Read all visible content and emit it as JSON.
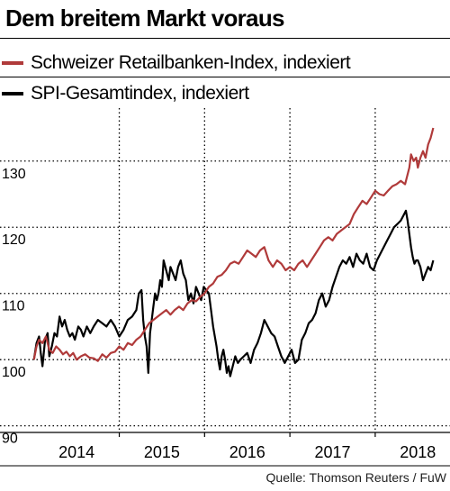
{
  "header": {
    "title": "Dem breitem Markt voraus"
  },
  "footer": {
    "source": "Quelle: Thomson Reuters / FuW"
  },
  "chart_data": {
    "type": "line",
    "title": "Dem breitem Markt voraus",
    "xlabel": "",
    "ylabel": "",
    "xlim": [
      2013.45,
      2018.25
    ],
    "ylim": [
      89,
      138
    ],
    "y_ticks": [
      90,
      100,
      110,
      120,
      130
    ],
    "x_tick_labels": [
      "2014",
      "2015",
      "2016",
      "2017",
      "2018"
    ],
    "x_tick_positions": [
      2014.0,
      2015.0,
      2016.0,
      2017.0,
      2018.0
    ],
    "grid": "dotted",
    "legend_position": "top",
    "colors": {
      "retail": "#b03a3a",
      "spi": "#000000"
    },
    "series": [
      {
        "name": "Schweizer Retailbanken-Index, indexiert",
        "color": "#b03a3a",
        "points": [
          [
            2013.5,
            100
          ],
          [
            2013.53,
            102
          ],
          [
            2013.56,
            103
          ],
          [
            2013.6,
            102.5
          ],
          [
            2013.64,
            103.5
          ],
          [
            2013.68,
            101.5
          ],
          [
            2013.72,
            101
          ],
          [
            2013.76,
            102
          ],
          [
            2013.8,
            101.5
          ],
          [
            2013.84,
            100.8
          ],
          [
            2013.88,
            101.2
          ],
          [
            2013.92,
            100.5
          ],
          [
            2013.96,
            101
          ],
          [
            2014.0,
            100
          ],
          [
            2014.05,
            100.5
          ],
          [
            2014.1,
            100.8
          ],
          [
            2014.15,
            100.3
          ],
          [
            2014.2,
            100.2
          ],
          [
            2014.25,
            99.8
          ],
          [
            2014.3,
            100.8
          ],
          [
            2014.35,
            100.3
          ],
          [
            2014.4,
            101
          ],
          [
            2014.45,
            101.2
          ],
          [
            2014.5,
            102
          ],
          [
            2014.55,
            101.5
          ],
          [
            2014.6,
            102.5
          ],
          [
            2014.65,
            102.2
          ],
          [
            2014.7,
            103
          ],
          [
            2014.75,
            103.5
          ],
          [
            2014.8,
            104.5
          ],
          [
            2014.85,
            105.5
          ],
          [
            2014.9,
            106
          ],
          [
            2014.95,
            106.5
          ],
          [
            2015.0,
            107
          ],
          [
            2015.05,
            107.5
          ],
          [
            2015.1,
            106.8
          ],
          [
            2015.15,
            107.5
          ],
          [
            2015.2,
            108
          ],
          [
            2015.25,
            107.5
          ],
          [
            2015.3,
            108.5
          ],
          [
            2015.35,
            109
          ],
          [
            2015.4,
            108.8
          ],
          [
            2015.45,
            109.5
          ],
          [
            2015.5,
            110
          ],
          [
            2015.55,
            111
          ],
          [
            2015.6,
            111.5
          ],
          [
            2015.65,
            112.5
          ],
          [
            2015.7,
            112.8
          ],
          [
            2015.75,
            113.5
          ],
          [
            2015.8,
            114.5
          ],
          [
            2015.85,
            114.8
          ],
          [
            2015.9,
            114.5
          ],
          [
            2015.95,
            115.5
          ],
          [
            2016.0,
            116.5
          ],
          [
            2016.05,
            116
          ],
          [
            2016.1,
            115.5
          ],
          [
            2016.15,
            116.5
          ],
          [
            2016.2,
            117
          ],
          [
            2016.25,
            115
          ],
          [
            2016.3,
            114
          ],
          [
            2016.35,
            115
          ],
          [
            2016.4,
            114.5
          ],
          [
            2016.45,
            113.5
          ],
          [
            2016.5,
            114
          ],
          [
            2016.55,
            113.5
          ],
          [
            2016.6,
            114.5
          ],
          [
            2016.65,
            115
          ],
          [
            2016.7,
            114
          ],
          [
            2016.75,
            115
          ],
          [
            2016.8,
            116
          ],
          [
            2016.85,
            117
          ],
          [
            2016.9,
            118
          ],
          [
            2016.95,
            118.5
          ],
          [
            2017.0,
            118
          ],
          [
            2017.05,
            119
          ],
          [
            2017.1,
            119.5
          ],
          [
            2017.15,
            120
          ],
          [
            2017.2,
            120.5
          ],
          [
            2017.25,
            122
          ],
          [
            2017.3,
            123
          ],
          [
            2017.35,
            124
          ],
          [
            2017.4,
            123.5
          ],
          [
            2017.45,
            124.5
          ],
          [
            2017.5,
            125.5
          ],
          [
            2017.55,
            125
          ],
          [
            2017.6,
            124.8
          ],
          [
            2017.65,
            125.5
          ],
          [
            2017.7,
            126.2
          ],
          [
            2017.75,
            126.5
          ],
          [
            2017.8,
            127
          ],
          [
            2017.85,
            126.5
          ],
          [
            2017.9,
            129
          ],
          [
            2017.92,
            131
          ],
          [
            2017.95,
            130
          ],
          [
            2017.98,
            130.5
          ],
          [
            2018.0,
            129
          ],
          [
            2018.03,
            130.5
          ],
          [
            2018.06,
            131.5
          ],
          [
            2018.09,
            130.5
          ],
          [
            2018.12,
            132.5
          ],
          [
            2018.15,
            133.5
          ],
          [
            2018.18,
            135
          ]
        ]
      },
      {
        "name": "SPI-Gesamtindex, indexiert",
        "color": "#000000",
        "points": [
          [
            2013.5,
            100
          ],
          [
            2013.53,
            102.5
          ],
          [
            2013.56,
            103.5
          ],
          [
            2013.58,
            101
          ],
          [
            2013.6,
            99
          ],
          [
            2013.63,
            103
          ],
          [
            2013.66,
            104
          ],
          [
            2013.68,
            100.5
          ],
          [
            2013.71,
            102
          ],
          [
            2013.74,
            104
          ],
          [
            2013.77,
            103.5
          ],
          [
            2013.8,
            106.5
          ],
          [
            2013.83,
            105
          ],
          [
            2013.86,
            106
          ],
          [
            2013.89,
            104.5
          ],
          [
            2013.92,
            103.5
          ],
          [
            2013.95,
            104
          ],
          [
            2013.98,
            103
          ],
          [
            2014.02,
            105
          ],
          [
            2014.05,
            104.5
          ],
          [
            2014.08,
            103.5
          ],
          [
            2014.12,
            105
          ],
          [
            2014.16,
            104
          ],
          [
            2014.2,
            105
          ],
          [
            2014.25,
            106
          ],
          [
            2014.3,
            105.5
          ],
          [
            2014.35,
            105
          ],
          [
            2014.4,
            106
          ],
          [
            2014.45,
            105
          ],
          [
            2014.5,
            103.5
          ],
          [
            2014.55,
            104.5
          ],
          [
            2014.6,
            106
          ],
          [
            2014.65,
            106.5
          ],
          [
            2014.7,
            107.5
          ],
          [
            2014.73,
            110
          ],
          [
            2014.76,
            110.5
          ],
          [
            2014.78,
            106
          ],
          [
            2014.8,
            103.5
          ],
          [
            2014.82,
            102
          ],
          [
            2014.84,
            98
          ],
          [
            2014.86,
            104
          ],
          [
            2014.88,
            106
          ],
          [
            2014.9,
            108
          ],
          [
            2014.92,
            110
          ],
          [
            2014.94,
            109
          ],
          [
            2014.96,
            110
          ],
          [
            2014.98,
            112
          ],
          [
            2015.0,
            111
          ],
          [
            2015.02,
            115
          ],
          [
            2015.04,
            114
          ],
          [
            2015.06,
            113
          ],
          [
            2015.08,
            112
          ],
          [
            2015.1,
            114
          ],
          [
            2015.13,
            113
          ],
          [
            2015.16,
            112
          ],
          [
            2015.19,
            114
          ],
          [
            2015.22,
            115
          ],
          [
            2015.25,
            113
          ],
          [
            2015.28,
            112
          ],
          [
            2015.31,
            109
          ],
          [
            2015.34,
            110
          ],
          [
            2015.37,
            108.5
          ],
          [
            2015.4,
            111
          ],
          [
            2015.43,
            110
          ],
          [
            2015.46,
            109
          ],
          [
            2015.49,
            111
          ],
          [
            2015.52,
            110.5
          ],
          [
            2015.55,
            110
          ],
          [
            2015.57,
            108
          ],
          [
            2015.6,
            105
          ],
          [
            2015.62,
            103.5
          ],
          [
            2015.64,
            102
          ],
          [
            2015.66,
            100
          ],
          [
            2015.68,
            98.5
          ],
          [
            2015.7,
            100.5
          ],
          [
            2015.72,
            101.5
          ],
          [
            2015.74,
            100
          ],
          [
            2015.76,
            98
          ],
          [
            2015.78,
            99
          ],
          [
            2015.8,
            97.5
          ],
          [
            2015.83,
            99
          ],
          [
            2015.86,
            100.5
          ],
          [
            2015.89,
            99.5
          ],
          [
            2015.92,
            100
          ],
          [
            2015.96,
            100.5
          ],
          [
            2016.0,
            101
          ],
          [
            2016.04,
            99.5
          ],
          [
            2016.08,
            101.5
          ],
          [
            2016.12,
            102.5
          ],
          [
            2016.16,
            104
          ],
          [
            2016.2,
            106
          ],
          [
            2016.24,
            105
          ],
          [
            2016.28,
            104
          ],
          [
            2016.32,
            103.5
          ],
          [
            2016.36,
            102
          ],
          [
            2016.4,
            100.5
          ],
          [
            2016.44,
            99.5
          ],
          [
            2016.48,
            100.5
          ],
          [
            2016.52,
            101.5
          ],
          [
            2016.56,
            99.5
          ],
          [
            2016.6,
            100
          ],
          [
            2016.64,
            103
          ],
          [
            2016.68,
            104
          ],
          [
            2016.72,
            105.5
          ],
          [
            2016.76,
            106
          ],
          [
            2016.8,
            107
          ],
          [
            2016.84,
            109
          ],
          [
            2016.88,
            110
          ],
          [
            2016.92,
            108
          ],
          [
            2016.96,
            109
          ],
          [
            2017.0,
            111
          ],
          [
            2017.04,
            112.5
          ],
          [
            2017.08,
            114
          ],
          [
            2017.12,
            115
          ],
          [
            2017.16,
            114.5
          ],
          [
            2017.2,
            115.5
          ],
          [
            2017.24,
            114
          ],
          [
            2017.28,
            116
          ],
          [
            2017.32,
            115
          ],
          [
            2017.36,
            114.5
          ],
          [
            2017.4,
            116
          ],
          [
            2017.44,
            114
          ],
          [
            2017.48,
            113.5
          ],
          [
            2017.52,
            115
          ],
          [
            2017.56,
            116
          ],
          [
            2017.6,
            117
          ],
          [
            2017.64,
            118
          ],
          [
            2017.68,
            119
          ],
          [
            2017.72,
            120
          ],
          [
            2017.76,
            120.5
          ],
          [
            2017.8,
            121
          ],
          [
            2017.84,
            122
          ],
          [
            2017.86,
            122.5
          ],
          [
            2017.88,
            121
          ],
          [
            2017.9,
            119
          ],
          [
            2017.92,
            117
          ],
          [
            2017.94,
            115.5
          ],
          [
            2017.96,
            114.5
          ],
          [
            2017.98,
            115
          ],
          [
            2018.0,
            115
          ],
          [
            2018.03,
            114
          ],
          [
            2018.06,
            112
          ],
          [
            2018.09,
            113
          ],
          [
            2018.12,
            114
          ],
          [
            2018.15,
            113.5
          ],
          [
            2018.18,
            115
          ]
        ]
      }
    ]
  }
}
